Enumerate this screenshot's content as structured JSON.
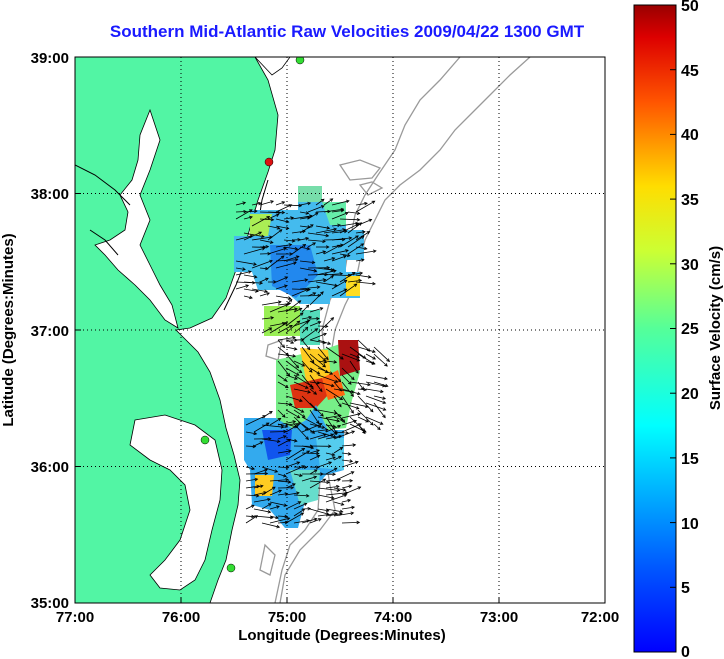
{
  "title": "Southern Mid-Atlantic Raw Velocities 2009/04/22 1300 GMT",
  "axes": {
    "xlabel": "Longitude (Degrees:Minutes)",
    "ylabel": "Latitude (Degrees:Minutes)",
    "x_ticks": [
      "77:00",
      "76:00",
      "75:00",
      "74:00",
      "73:00",
      "72:00"
    ],
    "y_ticks": [
      "39:00",
      "38:00",
      "37:00",
      "36:00",
      "35:00"
    ]
  },
  "colorbar": {
    "label": "Surface Velocity (cm/s)",
    "ticks": [
      "50",
      "45",
      "40",
      "35",
      "30",
      "25",
      "20",
      "15",
      "10",
      "5",
      "0"
    ],
    "range": [
      0,
      50
    ]
  },
  "colors": {
    "land": "#52f5a4",
    "water": "#ffffff",
    "bathymetry": "#9a9a9a",
    "title": "#1a1aff",
    "station_green": "#33dd33",
    "station_red": "#dd1111"
  },
  "stations": [
    {
      "color": "green",
      "lon": -75.03,
      "lat": 38.97
    },
    {
      "color": "red",
      "lon": -75.17,
      "lat": 38.22
    },
    {
      "color": "green",
      "lon": -75.55,
      "lat": 36.18
    },
    {
      "color": "green",
      "lon": -75.5,
      "lat": 35.3
    }
  ]
}
